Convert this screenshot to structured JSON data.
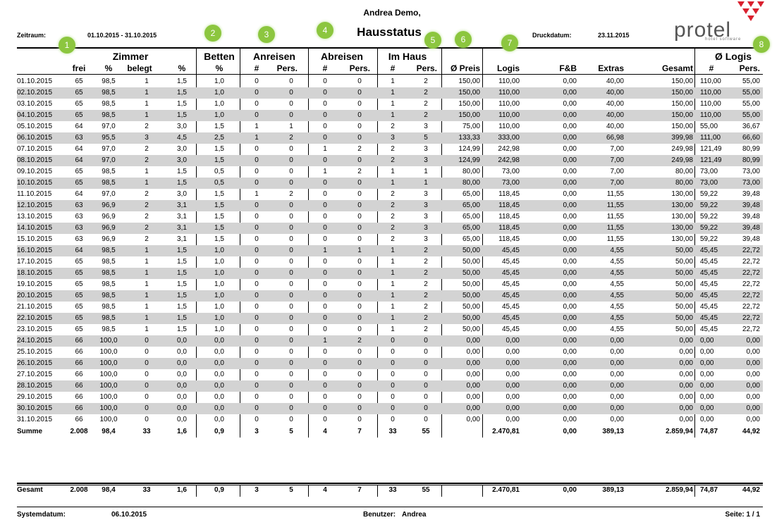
{
  "header": {
    "name": "Andrea Demo,",
    "title": "Hausstatus",
    "period_label": "Zeitraum:",
    "period": "01.10.2015  - 31.10.2015",
    "print_label": "Druckdatum:",
    "print_date": "23.11.2015"
  },
  "logo": {
    "name": "protel",
    "tagline": "hotel software"
  },
  "groups": [
    "Zimmer",
    "Betten",
    "Anreisen",
    "Abreisen",
    "Im Haus",
    "Ø Logis"
  ],
  "columns": [
    "frei",
    "%",
    "belegt",
    "%",
    "%",
    "#",
    "Pers.",
    "#",
    "Pers.",
    "#",
    "Pers.",
    "Ø Preis",
    "Logis",
    "F&B",
    "Extras",
    "Gesamt",
    "#",
    "Pers."
  ],
  "rows": [
    [
      "01.10.2015",
      "65",
      "98,5",
      "1",
      "1,5",
      "1,0",
      "0",
      "0",
      "0",
      "0",
      "1",
      "2",
      "150,00",
      "110,00",
      "0,00",
      "40,00",
      "150,00",
      "110,00",
      "55,00"
    ],
    [
      "02.10.2015",
      "65",
      "98,5",
      "1",
      "1,5",
      "1,0",
      "0",
      "0",
      "0",
      "0",
      "1",
      "2",
      "150,00",
      "110,00",
      "0,00",
      "40,00",
      "150,00",
      "110,00",
      "55,00"
    ],
    [
      "03.10.2015",
      "65",
      "98,5",
      "1",
      "1,5",
      "1,0",
      "0",
      "0",
      "0",
      "0",
      "1",
      "2",
      "150,00",
      "110,00",
      "0,00",
      "40,00",
      "150,00",
      "110,00",
      "55,00"
    ],
    [
      "04.10.2015",
      "65",
      "98,5",
      "1",
      "1,5",
      "1,0",
      "0",
      "0",
      "0",
      "0",
      "1",
      "2",
      "150,00",
      "110,00",
      "0,00",
      "40,00",
      "150,00",
      "110,00",
      "55,00"
    ],
    [
      "05.10.2015",
      "64",
      "97,0",
      "2",
      "3,0",
      "1,5",
      "1",
      "1",
      "0",
      "0",
      "2",
      "3",
      "75,00",
      "110,00",
      "0,00",
      "40,00",
      "150,00",
      "55,00",
      "36,67"
    ],
    [
      "06.10.2015",
      "63",
      "95,5",
      "3",
      "4,5",
      "2,5",
      "1",
      "2",
      "0",
      "0",
      "3",
      "5",
      "133,33",
      "333,00",
      "0,00",
      "66,98",
      "399,98",
      "111,00",
      "66,60"
    ],
    [
      "07.10.2015",
      "64",
      "97,0",
      "2",
      "3,0",
      "1,5",
      "0",
      "0",
      "1",
      "2",
      "2",
      "3",
      "124,99",
      "242,98",
      "0,00",
      "7,00",
      "249,98",
      "121,49",
      "80,99"
    ],
    [
      "08.10.2015",
      "64",
      "97,0",
      "2",
      "3,0",
      "1,5",
      "0",
      "0",
      "0",
      "0",
      "2",
      "3",
      "124,99",
      "242,98",
      "0,00",
      "7,00",
      "249,98",
      "121,49",
      "80,99"
    ],
    [
      "09.10.2015",
      "65",
      "98,5",
      "1",
      "1,5",
      "0,5",
      "0",
      "0",
      "1",
      "2",
      "1",
      "1",
      "80,00",
      "73,00",
      "0,00",
      "7,00",
      "80,00",
      "73,00",
      "73,00"
    ],
    [
      "10.10.2015",
      "65",
      "98,5",
      "1",
      "1,5",
      "0,5",
      "0",
      "0",
      "0",
      "0",
      "1",
      "1",
      "80,00",
      "73,00",
      "0,00",
      "7,00",
      "80,00",
      "73,00",
      "73,00"
    ],
    [
      "11.10.2015",
      "64",
      "97,0",
      "2",
      "3,0",
      "1,5",
      "1",
      "2",
      "0",
      "0",
      "2",
      "3",
      "65,00",
      "118,45",
      "0,00",
      "11,55",
      "130,00",
      "59,22",
      "39,48"
    ],
    [
      "12.10.2015",
      "63",
      "96,9",
      "2",
      "3,1",
      "1,5",
      "0",
      "0",
      "0",
      "0",
      "2",
      "3",
      "65,00",
      "118,45",
      "0,00",
      "11,55",
      "130,00",
      "59,22",
      "39,48"
    ],
    [
      "13.10.2015",
      "63",
      "96,9",
      "2",
      "3,1",
      "1,5",
      "0",
      "0",
      "0",
      "0",
      "2",
      "3",
      "65,00",
      "118,45",
      "0,00",
      "11,55",
      "130,00",
      "59,22",
      "39,48"
    ],
    [
      "14.10.2015",
      "63",
      "96,9",
      "2",
      "3,1",
      "1,5",
      "0",
      "0",
      "0",
      "0",
      "2",
      "3",
      "65,00",
      "118,45",
      "0,00",
      "11,55",
      "130,00",
      "59,22",
      "39,48"
    ],
    [
      "15.10.2015",
      "63",
      "96,9",
      "2",
      "3,1",
      "1,5",
      "0",
      "0",
      "0",
      "0",
      "2",
      "3",
      "65,00",
      "118,45",
      "0,00",
      "11,55",
      "130,00",
      "59,22",
      "39,48"
    ],
    [
      "16.10.2015",
      "64",
      "98,5",
      "1",
      "1,5",
      "1,0",
      "0",
      "0",
      "1",
      "1",
      "1",
      "2",
      "50,00",
      "45,45",
      "0,00",
      "4,55",
      "50,00",
      "45,45",
      "22,72"
    ],
    [
      "17.10.2015",
      "65",
      "98,5",
      "1",
      "1,5",
      "1,0",
      "0",
      "0",
      "0",
      "0",
      "1",
      "2",
      "50,00",
      "45,45",
      "0,00",
      "4,55",
      "50,00",
      "45,45",
      "22,72"
    ],
    [
      "18.10.2015",
      "65",
      "98,5",
      "1",
      "1,5",
      "1,0",
      "0",
      "0",
      "0",
      "0",
      "1",
      "2",
      "50,00",
      "45,45",
      "0,00",
      "4,55",
      "50,00",
      "45,45",
      "22,72"
    ],
    [
      "19.10.2015",
      "65",
      "98,5",
      "1",
      "1,5",
      "1,0",
      "0",
      "0",
      "0",
      "0",
      "1",
      "2",
      "50,00",
      "45,45",
      "0,00",
      "4,55",
      "50,00",
      "45,45",
      "22,72"
    ],
    [
      "20.10.2015",
      "65",
      "98,5",
      "1",
      "1,5",
      "1,0",
      "0",
      "0",
      "0",
      "0",
      "1",
      "2",
      "50,00",
      "45,45",
      "0,00",
      "4,55",
      "50,00",
      "45,45",
      "22,72"
    ],
    [
      "21.10.2015",
      "65",
      "98,5",
      "1",
      "1,5",
      "1,0",
      "0",
      "0",
      "0",
      "0",
      "1",
      "2",
      "50,00",
      "45,45",
      "0,00",
      "4,55",
      "50,00",
      "45,45",
      "22,72"
    ],
    [
      "22.10.2015",
      "65",
      "98,5",
      "1",
      "1,5",
      "1,0",
      "0",
      "0",
      "0",
      "0",
      "1",
      "2",
      "50,00",
      "45,45",
      "0,00",
      "4,55",
      "50,00",
      "45,45",
      "22,72"
    ],
    [
      "23.10.2015",
      "65",
      "98,5",
      "1",
      "1,5",
      "1,0",
      "0",
      "0",
      "0",
      "0",
      "1",
      "2",
      "50,00",
      "45,45",
      "0,00",
      "4,55",
      "50,00",
      "45,45",
      "22,72"
    ],
    [
      "24.10.2015",
      "66",
      "100,0",
      "0",
      "0,0",
      "0,0",
      "0",
      "0",
      "1",
      "2",
      "0",
      "0",
      "0,00",
      "0,00",
      "0,00",
      "0,00",
      "0,00",
      "0,00",
      "0,00"
    ],
    [
      "25.10.2015",
      "66",
      "100,0",
      "0",
      "0,0",
      "0,0",
      "0",
      "0",
      "0",
      "0",
      "0",
      "0",
      "0,00",
      "0,00",
      "0,00",
      "0,00",
      "0,00",
      "0,00",
      "0,00"
    ],
    [
      "26.10.2015",
      "66",
      "100,0",
      "0",
      "0,0",
      "0,0",
      "0",
      "0",
      "0",
      "0",
      "0",
      "0",
      "0,00",
      "0,00",
      "0,00",
      "0,00",
      "0,00",
      "0,00",
      "0,00"
    ],
    [
      "27.10.2015",
      "66",
      "100,0",
      "0",
      "0,0",
      "0,0",
      "0",
      "0",
      "0",
      "0",
      "0",
      "0",
      "0,00",
      "0,00",
      "0,00",
      "0,00",
      "0,00",
      "0,00",
      "0,00"
    ],
    [
      "28.10.2015",
      "66",
      "100,0",
      "0",
      "0,0",
      "0,0",
      "0",
      "0",
      "0",
      "0",
      "0",
      "0",
      "0,00",
      "0,00",
      "0,00",
      "0,00",
      "0,00",
      "0,00",
      "0,00"
    ],
    [
      "29.10.2015",
      "66",
      "100,0",
      "0",
      "0,0",
      "0,0",
      "0",
      "0",
      "0",
      "0",
      "0",
      "0",
      "0,00",
      "0,00",
      "0,00",
      "0,00",
      "0,00",
      "0,00",
      "0,00"
    ],
    [
      "30.10.2015",
      "66",
      "100,0",
      "0",
      "0,0",
      "0,0",
      "0",
      "0",
      "0",
      "0",
      "0",
      "0",
      "0,00",
      "0,00",
      "0,00",
      "0,00",
      "0,00",
      "0,00",
      "0,00"
    ],
    [
      "31.10.2015",
      "66",
      "100,0",
      "0",
      "0,0",
      "0,0",
      "0",
      "0",
      "0",
      "0",
      "0",
      "0",
      "0,00",
      "0,00",
      "0,00",
      "0,00",
      "0,00",
      "0,00",
      "0,00"
    ]
  ],
  "summary": [
    "Summe",
    "2.008",
    "98,4",
    "33",
    "1,6",
    "0,9",
    "3",
    "5",
    "4",
    "7",
    "33",
    "55",
    null,
    "2.470,81",
    "0,00",
    "389,13",
    "2.859,94",
    "74,87",
    "44,92"
  ],
  "total": [
    "Gesamt",
    "2.008",
    "98,4",
    "33",
    "1,6",
    "0,9",
    "3",
    "5",
    "4",
    "7",
    "33",
    "55",
    null,
    "2.470,81",
    "0,00",
    "389,13",
    "2.859,94",
    "74,87",
    "44,92"
  ],
  "footer": {
    "system_label": "Systemdatum:",
    "system_date": "06.10.2015",
    "user_label": "Benutzer:",
    "user": "Andrea",
    "page": "Seite: 1 / 1"
  },
  "markers": [
    "1",
    "2",
    "3",
    "4",
    "5",
    "6",
    "7",
    "8"
  ]
}
